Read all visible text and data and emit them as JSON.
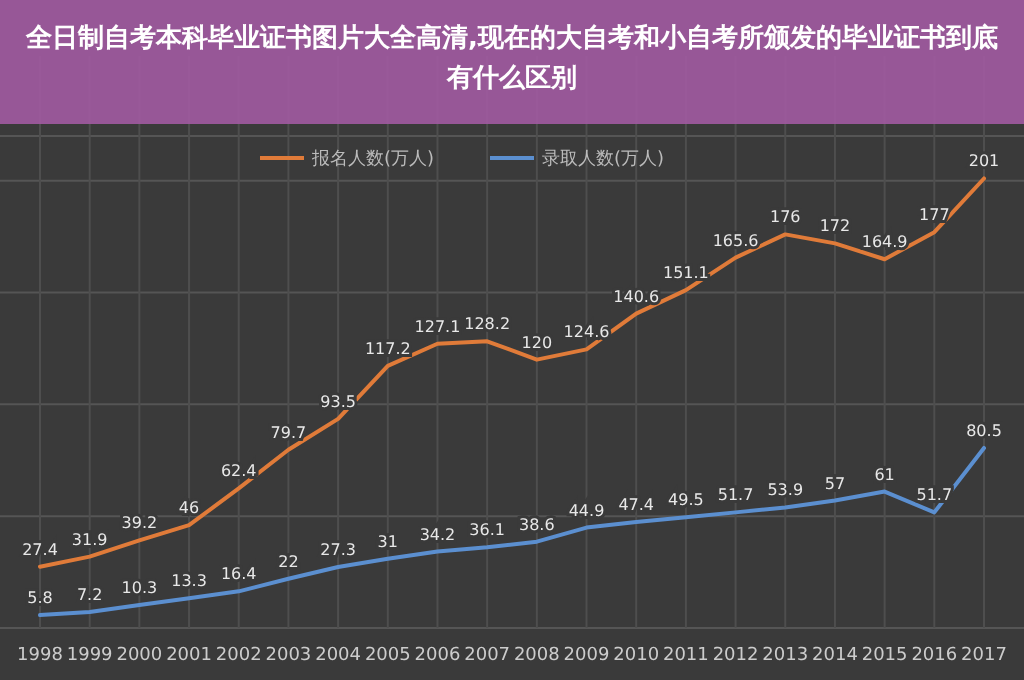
{
  "chart_data": {
    "type": "line",
    "title": "全日制自考本科毕业证书图片大全高清,现在的大自考和小自考所颁发的毕业证书到底有什么区别",
    "categories": [
      "1998",
      "1999",
      "2000",
      "2001",
      "2002",
      "2003",
      "2004",
      "2005",
      "2006",
      "2007",
      "2008",
      "2009",
      "2010",
      "2011",
      "2012",
      "2013",
      "2014",
      "2015",
      "2016",
      "2017"
    ],
    "series": [
      {
        "name": "报名人数(万人)",
        "color": "#e07b39",
        "values": [
          27.4,
          31.9,
          39.2,
          46,
          62.4,
          79.7,
          93.5,
          117.2,
          127.1,
          128.2,
          120,
          124.6,
          140.6,
          151.1,
          165.6,
          176,
          172,
          164.9,
          177,
          201
        ]
      },
      {
        "name": "录取人数(万人)",
        "color": "#5b8fd0",
        "values": [
          5.8,
          7.2,
          10.3,
          13.3,
          16.4,
          22,
          27.3,
          31,
          34.2,
          36.1,
          38.6,
          44.9,
          47.4,
          49.5,
          51.7,
          53.9,
          57,
          61,
          51.7,
          80.5
        ]
      }
    ],
    "ylim": [
      0,
      220
    ],
    "yticks": [
      {
        "value": 0,
        "label": null
      },
      {
        "value": 50,
        "label": null
      },
      {
        "value": 100,
        "label": null
      },
      {
        "value": 150,
        "label": null
      },
      {
        "value": 200,
        "label": null
      }
    ],
    "tick_labels": "x",
    "grid": true,
    "legend": "top",
    "data_labels": true,
    "marker": "none",
    "line_style": "solid"
  }
}
